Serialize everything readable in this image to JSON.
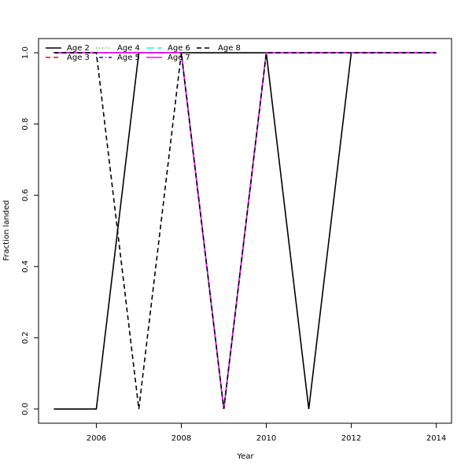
{
  "chart_data": {
    "type": "line",
    "x_label": "Year",
    "y_label": "Fraction landed",
    "x": [
      2005,
      2006,
      2007,
      2008,
      2009,
      2010,
      2011,
      2012,
      2013,
      2014
    ],
    "series": [
      {
        "name": "Age 2",
        "color": "#000000",
        "dash": "solid",
        "values": [
          0,
          0,
          1,
          1,
          1,
          1,
          0,
          1,
          1,
          1
        ]
      },
      {
        "name": "Age 3",
        "color": "#ff0000",
        "dash": "dashed",
        "values": [
          1,
          1,
          1,
          1,
          0,
          1,
          1,
          1,
          1,
          1
        ]
      },
      {
        "name": "Age 4",
        "color": "#00cd00",
        "dash": "dotted",
        "values": [
          1,
          1,
          1,
          1,
          0,
          1,
          1,
          1,
          1,
          1
        ]
      },
      {
        "name": "Age 5",
        "color": "#0000ff",
        "dash": "dotdash",
        "values": [
          1,
          1,
          1,
          1,
          0,
          1,
          1,
          1,
          1,
          1
        ]
      },
      {
        "name": "Age 6",
        "color": "#00ffff",
        "dash": "longdash",
        "values": [
          1,
          1,
          1,
          1,
          0,
          1,
          1,
          1,
          1,
          1
        ]
      },
      {
        "name": "Age 7",
        "color": "#ff00ff",
        "dash": "solid",
        "values": [
          1,
          1,
          1,
          1,
          0,
          1,
          1,
          1,
          1,
          1
        ]
      },
      {
        "name": "Age 8",
        "color": "#000000",
        "dash": "dashed",
        "values": [
          1,
          1,
          0,
          1,
          0,
          1,
          1,
          1,
          1,
          1
        ]
      }
    ],
    "xlim": [
      2004.64,
      2014.36
    ],
    "xticks": [
      2006,
      2008,
      2010,
      2012,
      2014
    ],
    "ylim": [
      -0.04,
      1.04
    ],
    "yticks": [
      {
        "value": 0,
        "label": "0.0"
      },
      0.2,
      0.4,
      0.6,
      0.8,
      {
        "value": 1,
        "label": "1.0"
      }
    ],
    "legend": "top-left"
  }
}
